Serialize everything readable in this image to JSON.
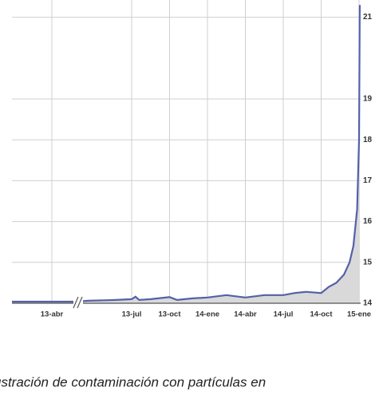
{
  "chart_data": {
    "type": "line",
    "categories": [
      "13-abr",
      "13-jul",
      "13-oct",
      "14-ene",
      "14-abr",
      "14-jul",
      "14-oct",
      "15-ene"
    ],
    "xticks": [
      0,
      1,
      2,
      3,
      4,
      5,
      6,
      7
    ],
    "xlim": [
      -0.5,
      7.2
    ],
    "x": [
      -0.5,
      0.3,
      0.45,
      0.8,
      1.0,
      1.1,
      1.2,
      1.5,
      2.0,
      2.2,
      2.6,
      3.0,
      3.5,
      4.0,
      4.5,
      5.0,
      5.3,
      5.6,
      6.0,
      6.2,
      6.4,
      6.6,
      6.75,
      6.85,
      6.95,
      7.0,
      7.02
    ],
    "series": [
      {
        "color": "#5560a8",
        "fill": "#d9d9d9",
        "values": [
          14.04,
          14.04,
          14.06,
          14.08,
          14.1,
          14.16,
          14.08,
          14.1,
          14.15,
          14.08,
          14.12,
          14.14,
          14.2,
          14.14,
          14.2,
          14.2,
          14.25,
          14.28,
          14.25,
          14.4,
          14.5,
          14.7,
          15,
          15.4,
          16.3,
          18,
          21.3
        ]
      }
    ],
    "ylim": [
      14,
      21.4
    ],
    "yticks": [
      {
        "value": 14,
        "label": "14"
      },
      {
        "value": 15,
        "label": "15"
      },
      {
        "value": 16,
        "label": "16"
      },
      {
        "value": 17,
        "label": "17"
      },
      {
        "value": 18,
        "label": "18"
      },
      {
        "value": 19,
        "label": "19"
      },
      {
        "value": 21,
        "label": "21"
      }
    ],
    "grid": true
  },
  "caption": "ustración de contaminación con partículas en"
}
